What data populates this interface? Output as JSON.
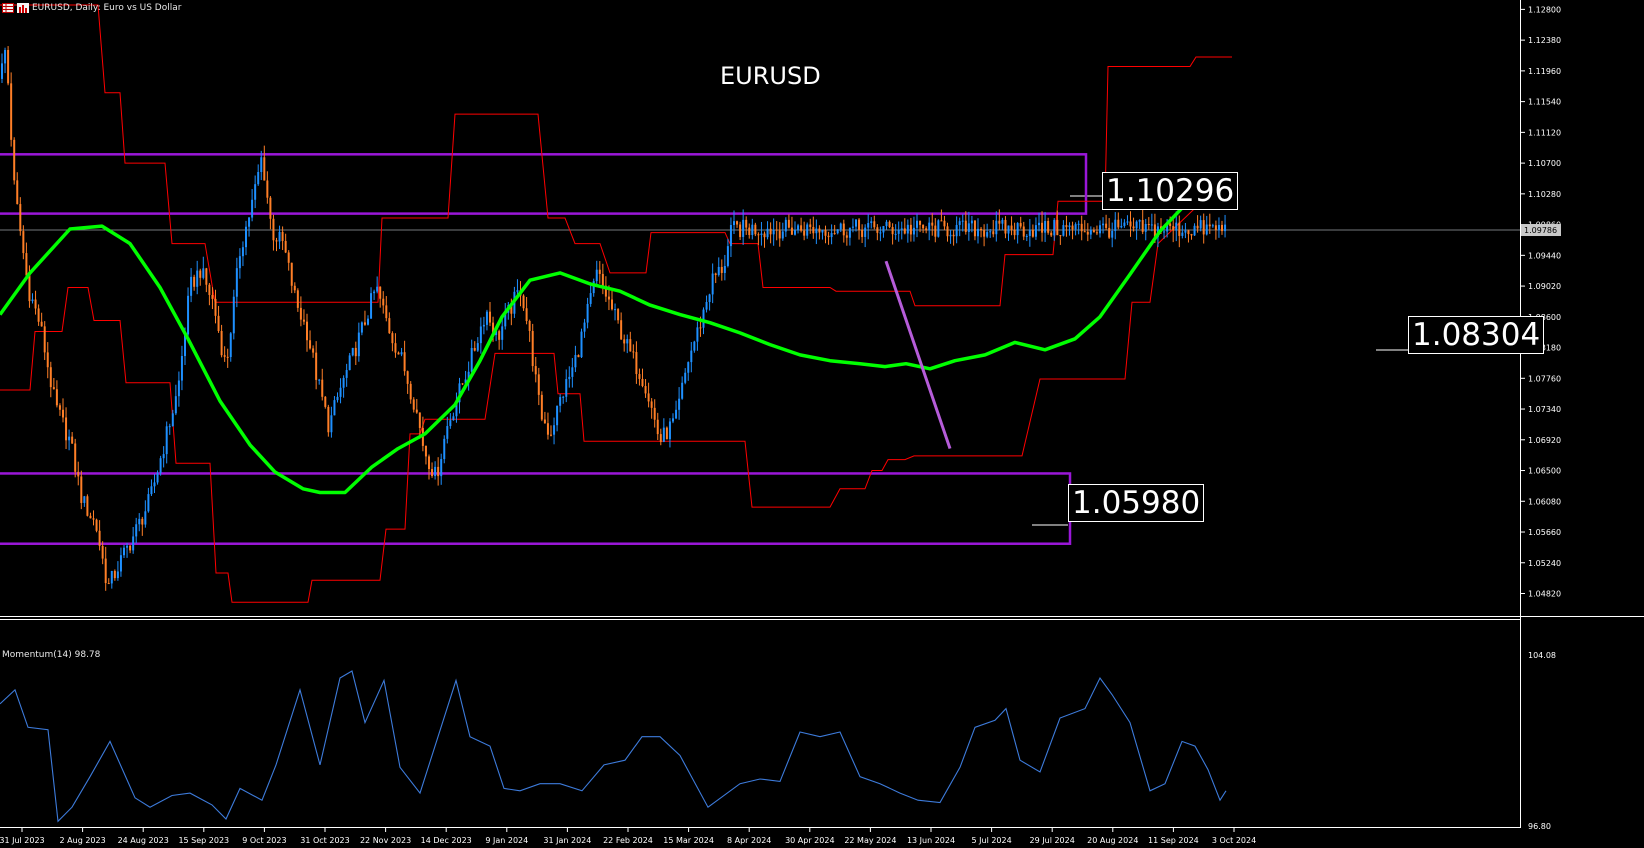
{
  "header": {
    "symbol": "EURUSD",
    "timeframe": "Daily",
    "description": "Euro vs US Dollar",
    "text": "EURUSD, Daily:  Euro vs US Dollar"
  },
  "chart_title": "EURUSD",
  "indicator": {
    "name": "Momentum(14)",
    "value": "98.78",
    "label": "Momentum(14) 98.78"
  },
  "level_labels": {
    "upper": "1.10296",
    "middle": "1.08304",
    "lower": "1.05980"
  },
  "current_price_label": "1.09786",
  "colors": {
    "background": "#000000",
    "bull_candle": "#1e90ff",
    "bear_candle": "#ff7f27",
    "ma_line": "#00ff00",
    "donchian": "#ff0000",
    "zones": "#9a17d8",
    "trendline": "#b65cd9",
    "momentum": "#3d7bdb",
    "axis_text": "#ffffff"
  },
  "icons": [
    "table-icon",
    "bar-chart-icon"
  ],
  "chart_data": {
    "type": "candlestick",
    "title": "EURUSD",
    "x_tick_labels": [
      "31 Jul 2023",
      "2 Aug 2023",
      "24 Aug 2023",
      "15 Sep 2023",
      "9 Oct 2023",
      "31 Oct 2023",
      "22 Nov 2023",
      "14 Dec 2023",
      "9 Jan 2024",
      "31 Jan 2024",
      "22 Feb 2024",
      "15 Mar 2024",
      "8 Apr 2024",
      "30 Apr 2024",
      "22 May 2024",
      "13 Jun 2024",
      "5 Jul 2024",
      "29 Jul 2024",
      "20 Aug 2024",
      "11 Sep 2024",
      "3 Oct 2024"
    ],
    "price_axis_labels": [
      "1.12800",
      "1.12380",
      "1.11960",
      "1.11540",
      "1.11120",
      "1.10700",
      "1.10280",
      "1.09860",
      "1.09440",
      "1.09020",
      "1.08600",
      "1.08180",
      "1.07760",
      "1.07340",
      "1.06920",
      "1.06500",
      "1.06080",
      "1.05660",
      "1.05240",
      "1.04820"
    ],
    "ylim": [
      1.0454,
      1.1286
    ],
    "close_series": [
      [
        0,
        1.1185
      ],
      [
        6,
        1.123
      ],
      [
        14,
        1.104
      ],
      [
        28,
        1.09
      ],
      [
        40,
        1.085
      ],
      [
        55,
        1.074
      ],
      [
        70,
        1.069
      ],
      [
        82,
        1.061
      ],
      [
        96,
        1.0575
      ],
      [
        108,
        1.049
      ],
      [
        122,
        1.053
      ],
      [
        135,
        1.0565
      ],
      [
        150,
        1.061
      ],
      [
        163,
        1.068
      ],
      [
        178,
        1.076
      ],
      [
        190,
        1.09
      ],
      [
        200,
        1.0925
      ],
      [
        213,
        1.088
      ],
      [
        226,
        1.079
      ],
      [
        240,
        1.095
      ],
      [
        253,
        1.102
      ],
      [
        262,
        1.108
      ],
      [
        272,
        1.0975
      ],
      [
        283,
        1.096
      ],
      [
        296,
        1.088
      ],
      [
        307,
        1.084
      ],
      [
        318,
        1.077
      ],
      [
        329,
        1.071
      ],
      [
        340,
        1.076
      ],
      [
        351,
        1.08
      ],
      [
        364,
        1.085
      ],
      [
        376,
        1.09
      ],
      [
        390,
        1.084
      ],
      [
        402,
        1.08
      ],
      [
        415,
        1.074
      ],
      [
        424,
        1.068
      ],
      [
        436,
        1.064
      ],
      [
        447,
        1.071
      ],
      [
        460,
        1.076
      ],
      [
        473,
        1.081
      ],
      [
        486,
        1.087
      ],
      [
        497,
        1.083
      ],
      [
        510,
        1.087
      ],
      [
        521,
        1.09
      ],
      [
        530,
        1.083
      ],
      [
        540,
        1.073
      ],
      [
        550,
        1.07
      ],
      [
        561,
        1.075
      ],
      [
        573,
        1.079
      ],
      [
        583,
        1.084
      ],
      [
        597,
        1.092
      ],
      [
        606,
        1.089
      ],
      [
        618,
        1.085
      ],
      [
        630,
        1.081
      ],
      [
        645,
        1.077
      ],
      [
        660,
        1.069
      ],
      [
        676,
        1.072
      ],
      [
        688,
        1.08
      ],
      [
        700,
        1.085
      ],
      [
        712,
        1.091
      ],
      [
        724,
        1.093
      ],
      [
        732,
        1.098
      ]
    ],
    "moving_average": [
      [
        0,
        1.0863
      ],
      [
        30,
        1.092
      ],
      [
        70,
        1.098
      ],
      [
        102,
        1.0984
      ],
      [
        130,
        1.096
      ],
      [
        160,
        1.09
      ],
      [
        188,
        1.083
      ],
      [
        220,
        1.0745
      ],
      [
        250,
        1.0685
      ],
      [
        275,
        1.0648
      ],
      [
        303,
        1.0625
      ],
      [
        320,
        1.062
      ],
      [
        345,
        1.062
      ],
      [
        372,
        1.0655
      ],
      [
        398,
        1.068
      ],
      [
        425,
        1.07
      ],
      [
        455,
        1.074
      ],
      [
        480,
        1.08
      ],
      [
        502,
        1.086
      ],
      [
        530,
        1.091
      ],
      [
        560,
        1.092
      ],
      [
        590,
        1.0905
      ],
      [
        620,
        1.0895
      ],
      [
        650,
        1.0876
      ],
      [
        680,
        1.0863
      ],
      [
        710,
        1.0852
      ],
      [
        740,
        1.0838
      ],
      [
        770,
        1.0822
      ],
      [
        800,
        1.0808
      ],
      [
        830,
        1.08
      ],
      [
        860,
        1.0796
      ],
      [
        885,
        1.0792
      ],
      [
        906,
        1.0796
      ],
      [
        930,
        1.0789
      ],
      [
        955,
        1.08
      ],
      [
        985,
        1.0808
      ],
      [
        1015,
        1.0825
      ],
      [
        1045,
        1.0815
      ],
      [
        1075,
        1.083
      ],
      [
        1100,
        1.086
      ],
      [
        1130,
        1.0918
      ],
      [
        1160,
        1.0977
      ],
      [
        1190,
        1.102
      ],
      [
        1213,
        1.1035
      ],
      [
        1232,
        1.1048
      ]
    ],
    "donchian_upper": [
      [
        0,
        1.1286
      ],
      [
        98,
        1.1286
      ],
      [
        105,
        1.1166
      ],
      [
        120,
        1.1166
      ],
      [
        125,
        1.107
      ],
      [
        165,
        1.107
      ],
      [
        172,
        1.096
      ],
      [
        205,
        1.096
      ],
      [
        215,
        1.088
      ],
      [
        378,
        1.088
      ],
      [
        382,
        1.0995
      ],
      [
        448,
        1.0995
      ],
      [
        455,
        1.1137
      ],
      [
        538,
        1.1137
      ],
      [
        548,
        1.0995
      ],
      [
        565,
        1.0995
      ],
      [
        575,
        1.096
      ],
      [
        600,
        1.096
      ],
      [
        610,
        1.092
      ],
      [
        646,
        1.092
      ],
      [
        651,
        1.0975
      ],
      [
        725,
        1.0975
      ],
      [
        730,
        1.096
      ],
      [
        758,
        1.096
      ],
      [
        763,
        1.09
      ],
      [
        830,
        1.09
      ],
      [
        836,
        1.0895
      ],
      [
        910,
        1.0895
      ],
      [
        915,
        1.0875
      ],
      [
        1000,
        1.0875
      ],
      [
        1005,
        1.0945
      ],
      [
        1053,
        1.0945
      ],
      [
        1058,
        1.1018
      ],
      [
        1105,
        1.1018
      ],
      [
        1108,
        1.1202
      ],
      [
        1190,
        1.1202
      ],
      [
        1196,
        1.1215
      ],
      [
        1232,
        1.1215
      ]
    ],
    "donchian_lower": [
      [
        0,
        1.076
      ],
      [
        30,
        1.076
      ],
      [
        35,
        1.084
      ],
      [
        62,
        1.084
      ],
      [
        68,
        1.09
      ],
      [
        88,
        1.09
      ],
      [
        94,
        1.0855
      ],
      [
        120,
        1.0855
      ],
      [
        126,
        1.077
      ],
      [
        170,
        1.077
      ],
      [
        176,
        1.066
      ],
      [
        210,
        1.066
      ],
      [
        216,
        1.051
      ],
      [
        228,
        1.051
      ],
      [
        232,
        1.047
      ],
      [
        308,
        1.047
      ],
      [
        312,
        1.05
      ],
      [
        380,
        1.05
      ],
      [
        386,
        1.057
      ],
      [
        405,
        1.057
      ],
      [
        410,
        1.07
      ],
      [
        420,
        1.07
      ],
      [
        425,
        1.072
      ],
      [
        485,
        1.072
      ],
      [
        495,
        1.081
      ],
      [
        554,
        1.081
      ],
      [
        558,
        1.0755
      ],
      [
        580,
        1.0755
      ],
      [
        584,
        1.069
      ],
      [
        745,
        1.069
      ],
      [
        752,
        1.06
      ],
      [
        830,
        1.06
      ],
      [
        840,
        1.0625
      ],
      [
        865,
        1.0625
      ],
      [
        872,
        1.065
      ],
      [
        882,
        1.065
      ],
      [
        888,
        1.0665
      ],
      [
        905,
        1.0665
      ],
      [
        914,
        1.067
      ],
      [
        1022,
        1.067
      ],
      [
        1040,
        1.0775
      ],
      [
        1125,
        1.0775
      ],
      [
        1132,
        1.088
      ],
      [
        1150,
        1.088
      ],
      [
        1158,
        1.096
      ],
      [
        1200,
        1.1015
      ],
      [
        1232,
        1.1015
      ]
    ],
    "zones": [
      {
        "x_start": 0,
        "x_end": 1086,
        "top": 1.1082,
        "bottom": 1.1001
      },
      {
        "x_start": 0,
        "x_end": 1070,
        "top": 1.0646,
        "bottom": 1.055
      }
    ],
    "trendline": {
      "from": [
        886,
        1.0936
      ],
      "to": [
        950,
        1.068
      ]
    },
    "momentum": {
      "name": "Momentum(14)",
      "ylim": [
        96.8,
        104.08
      ],
      "axis_labels": [
        "104.08",
        "96.80"
      ],
      "values": [
        [
          0,
          102.0
        ],
        [
          15,
          102.6
        ],
        [
          28,
          101.0
        ],
        [
          48,
          100.9
        ],
        [
          58,
          97.0
        ],
        [
          72,
          97.6
        ],
        [
          90,
          98.9
        ],
        [
          110,
          100.4
        ],
        [
          135,
          98.0
        ],
        [
          150,
          97.6
        ],
        [
          172,
          98.1
        ],
        [
          190,
          98.2
        ],
        [
          212,
          97.7
        ],
        [
          226,
          97.1
        ],
        [
          240,
          98.4
        ],
        [
          262,
          97.9
        ],
        [
          276,
          99.4
        ],
        [
          300,
          102.6
        ],
        [
          320,
          99.4
        ],
        [
          340,
          103.1
        ],
        [
          352,
          103.4
        ],
        [
          365,
          101.2
        ],
        [
          384,
          103.0
        ],
        [
          400,
          99.3
        ],
        [
          420,
          98.2
        ],
        [
          456,
          103.0
        ],
        [
          470,
          100.6
        ],
        [
          490,
          100.2
        ],
        [
          504,
          98.4
        ],
        [
          520,
          98.3
        ],
        [
          540,
          98.6
        ],
        [
          560,
          98.6
        ],
        [
          582,
          98.3
        ],
        [
          604,
          99.4
        ],
        [
          625,
          99.6
        ],
        [
          642,
          100.6
        ],
        [
          660,
          100.6
        ],
        [
          680,
          99.8
        ],
        [
          708,
          97.6
        ],
        [
          740,
          98.6
        ],
        [
          760,
          98.8
        ],
        [
          780,
          98.7
        ],
        [
          800,
          100.8
        ],
        [
          820,
          100.6
        ],
        [
          840,
          100.8
        ],
        [
          860,
          98.9
        ],
        [
          880,
          98.6
        ],
        [
          900,
          98.2
        ],
        [
          918,
          97.9
        ],
        [
          940,
          97.8
        ],
        [
          960,
          99.3
        ],
        [
          975,
          101.0
        ],
        [
          995,
          101.3
        ],
        [
          1006,
          101.8
        ],
        [
          1020,
          99.6
        ],
        [
          1040,
          99.1
        ],
        [
          1060,
          101.4
        ],
        [
          1085,
          101.8
        ],
        [
          1100,
          103.1
        ],
        [
          1112,
          102.4
        ],
        [
          1130,
          101.2
        ],
        [
          1150,
          98.3
        ],
        [
          1165,
          98.6
        ],
        [
          1182,
          100.4
        ],
        [
          1195,
          100.2
        ],
        [
          1208,
          99.2
        ],
        [
          1220,
          97.9
        ],
        [
          1226,
          98.3
        ]
      ]
    }
  }
}
